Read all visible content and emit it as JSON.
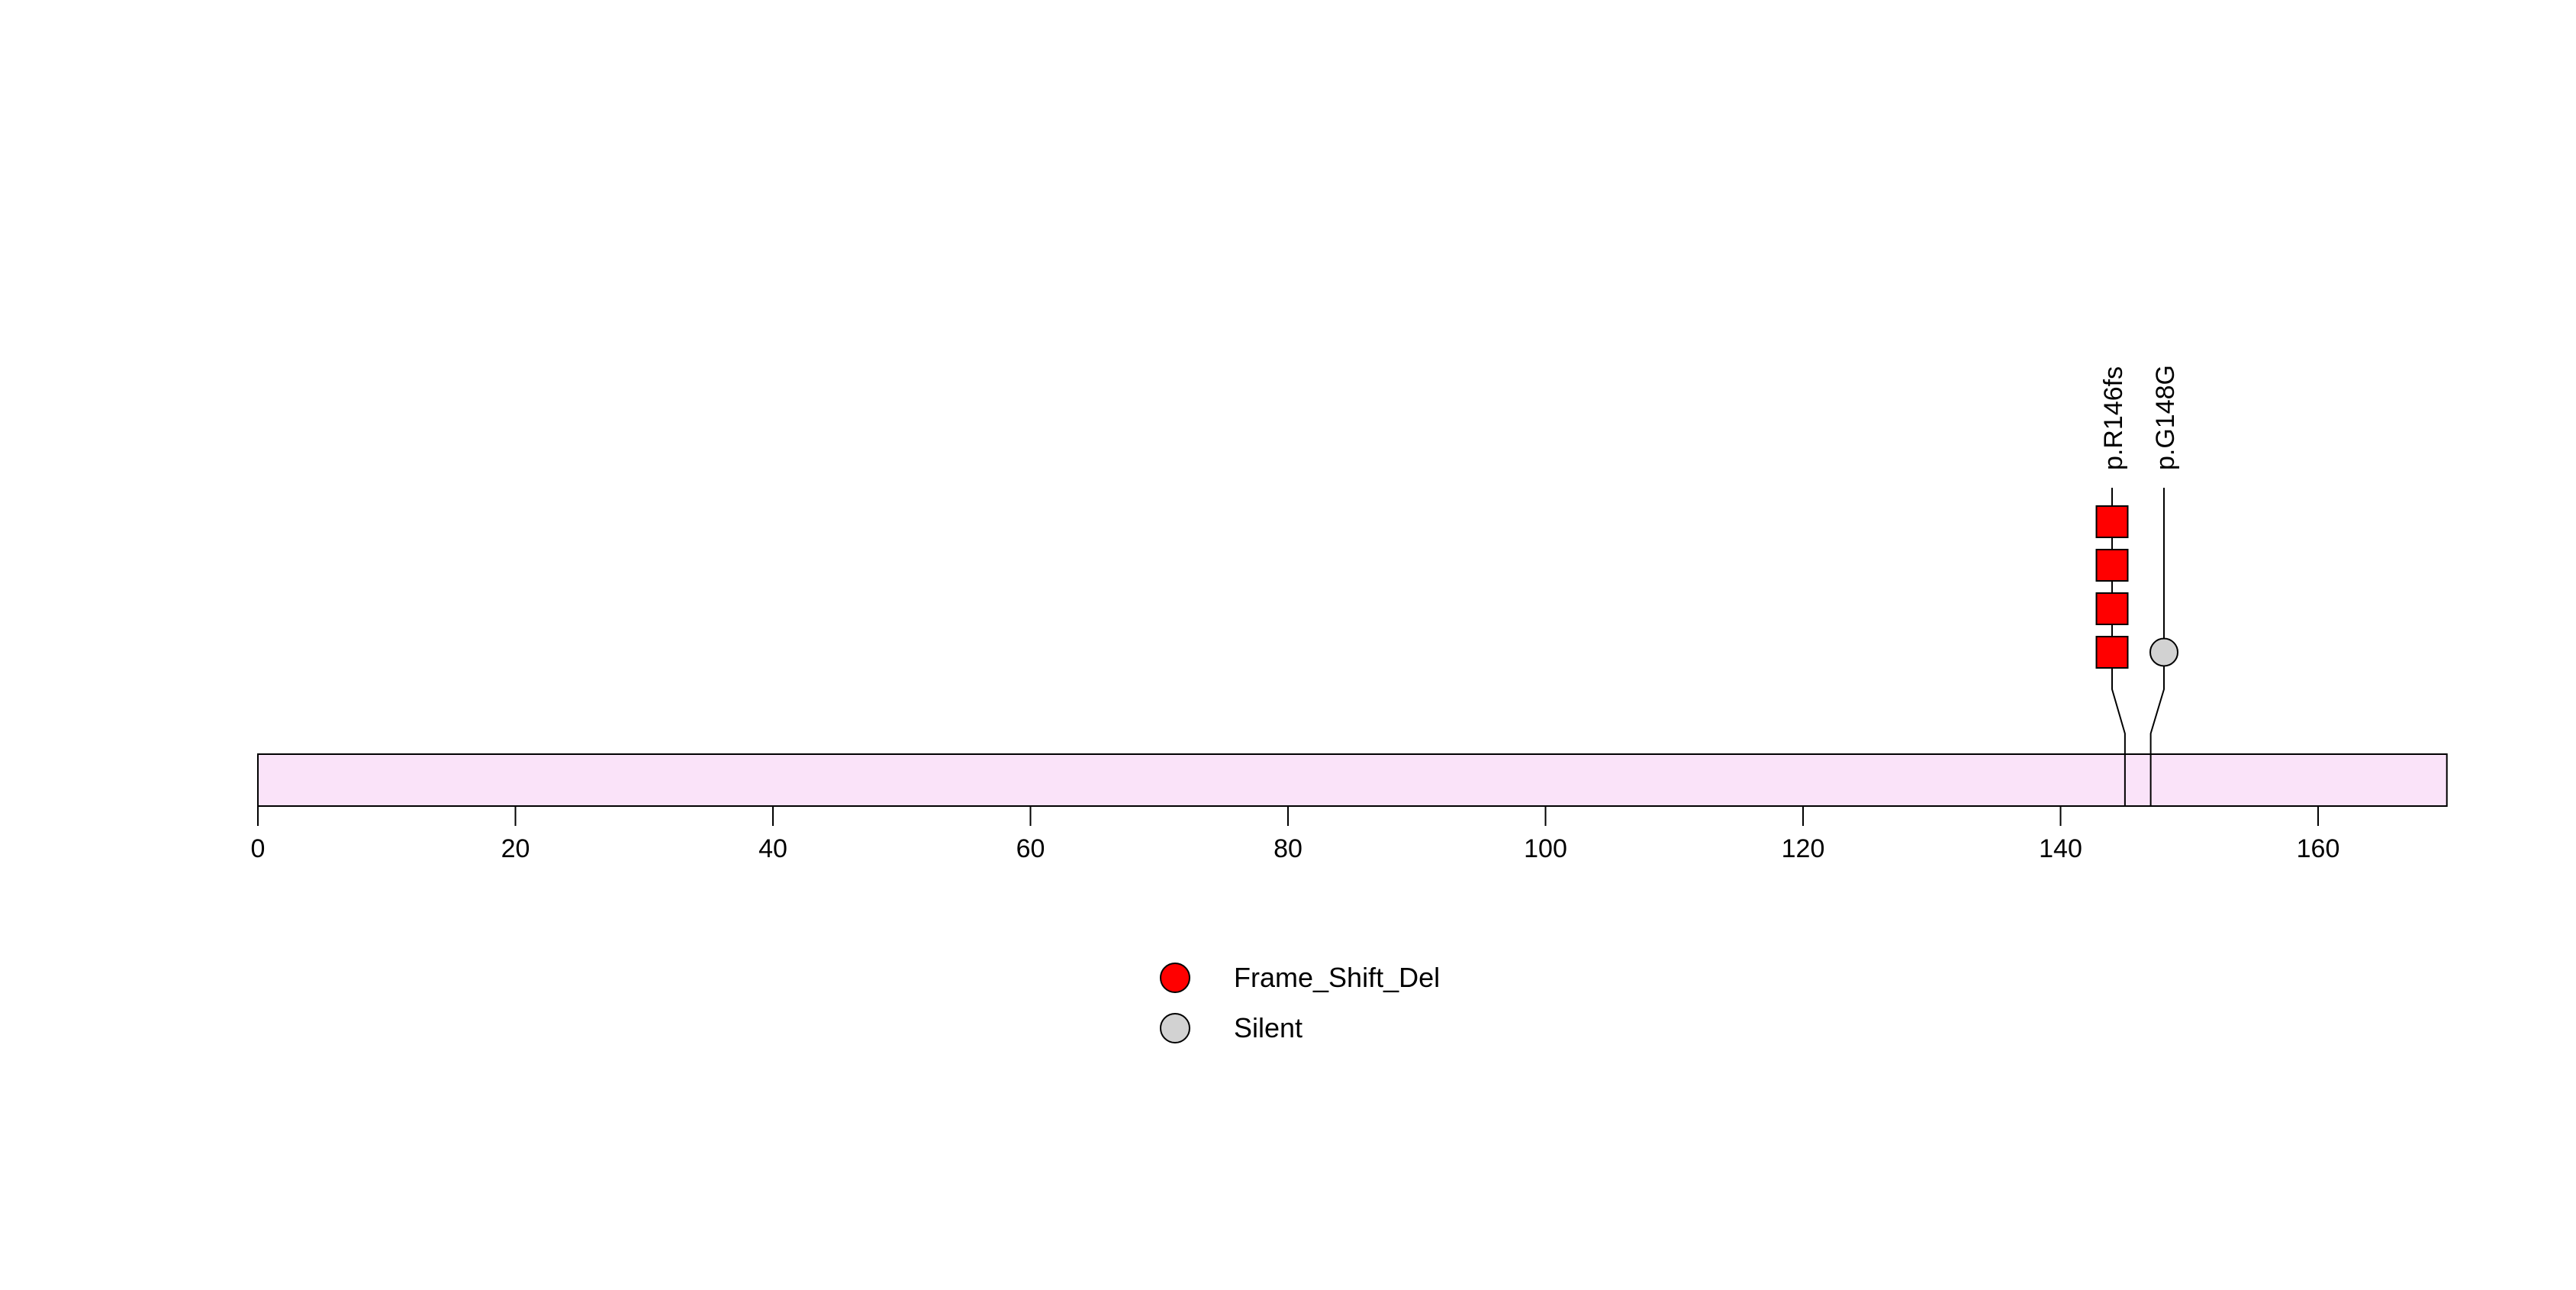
{
  "figure": {
    "background_color": "#ffffff",
    "text_color": "#000000"
  },
  "chart_data": {
    "type": "lollipop",
    "title": "",
    "xlabel": "",
    "ylabel": "",
    "protein": {
      "aa_start": 0,
      "aa_end": 170,
      "bar_color": "#FAE3F9",
      "bar_border_color": "#000000"
    },
    "xaxis": {
      "ticks": [
        0,
        20,
        40,
        60,
        80,
        100,
        120,
        140,
        160
      ],
      "range": [
        0,
        170
      ],
      "grid": false
    },
    "mutations": [
      {
        "label": "p.R146fs",
        "position": 146,
        "count": 4,
        "classification": "Frame_Shift_Del",
        "color": "#FF0000",
        "shape": "square"
      },
      {
        "label": "p.G148G",
        "position": 148,
        "count": 1,
        "classification": "Silent",
        "color": "#D2D2D2",
        "shape": "circle"
      }
    ],
    "legend": {
      "position": "bottom-center",
      "items": [
        {
          "label": "Frame_Shift_Del",
          "color": "#FF0000"
        },
        {
          "label": "Silent",
          "color": "#D2D2D2"
        }
      ]
    }
  }
}
